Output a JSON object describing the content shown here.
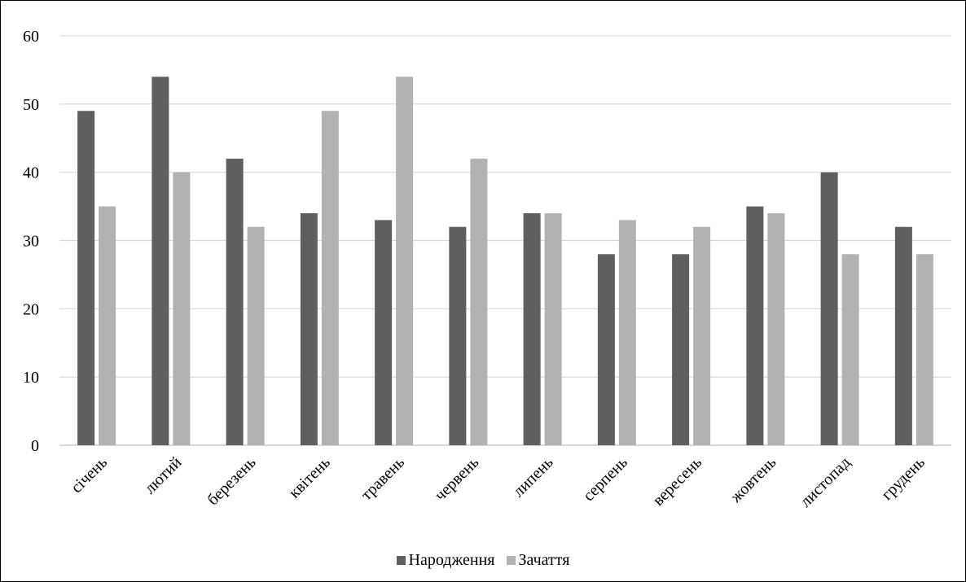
{
  "chart_data": {
    "type": "bar",
    "categories": [
      "січень",
      "лютий",
      "березень",
      "квітень",
      "травень",
      "червень",
      "липень",
      "серпень",
      "вересень",
      "жовтень",
      "листопад",
      "грудень"
    ],
    "series": [
      {
        "name": "Народження",
        "color": "#5f5f5f",
        "values": [
          49,
          54,
          42,
          34,
          33,
          32,
          34,
          28,
          28,
          35,
          40,
          32
        ]
      },
      {
        "name": "Зачаття",
        "color": "#b2b2b2",
        "values": [
          35,
          40,
          32,
          49,
          54,
          42,
          34,
          33,
          32,
          34,
          28,
          28
        ]
      }
    ],
    "y_ticks": [
      "0",
      "10",
      "20",
      "30",
      "40",
      "50",
      "60"
    ],
    "ylim": [
      0,
      60
    ],
    "grid": true,
    "legend_position": "bottom"
  }
}
